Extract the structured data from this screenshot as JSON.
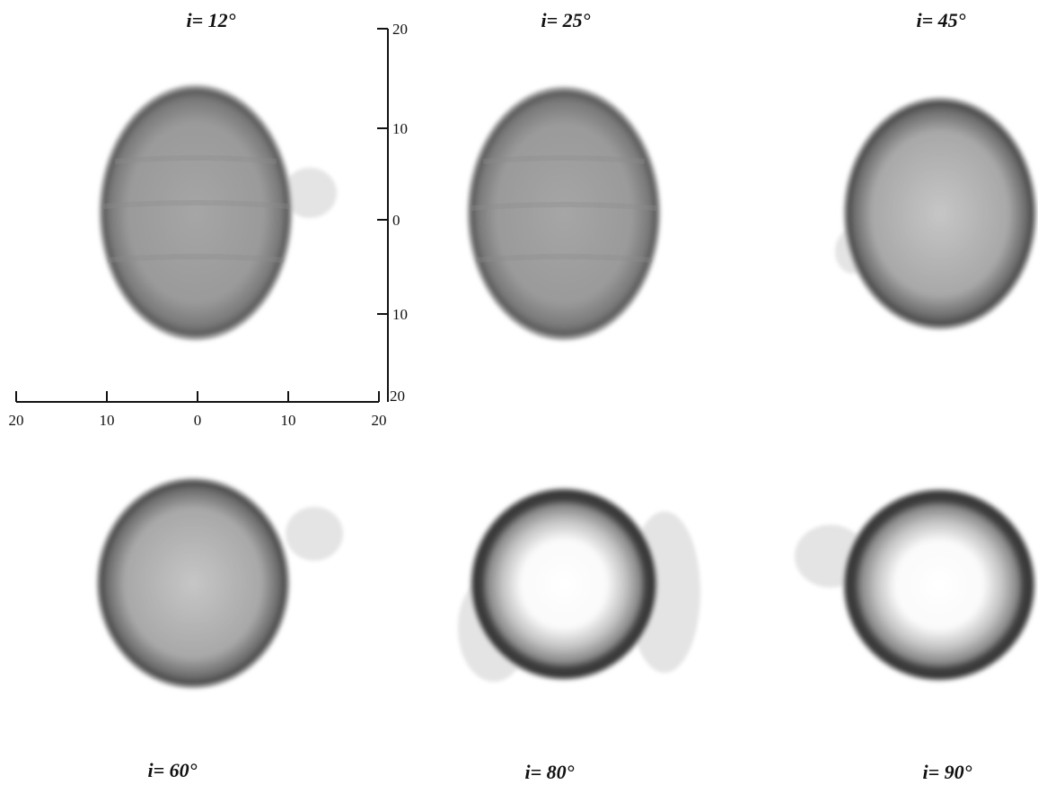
{
  "panels": [
    {
      "label": "i= 12°"
    },
    {
      "label": "i= 25°"
    },
    {
      "label": "i= 45°"
    },
    {
      "label": "i= 60°"
    },
    {
      "label": "i= 80°"
    },
    {
      "label": "i= 90°"
    }
  ],
  "axes": {
    "x_ticks": [
      20,
      10,
      0,
      10,
      20
    ],
    "y_ticks": [
      20,
      10,
      0,
      10,
      20
    ]
  }
}
